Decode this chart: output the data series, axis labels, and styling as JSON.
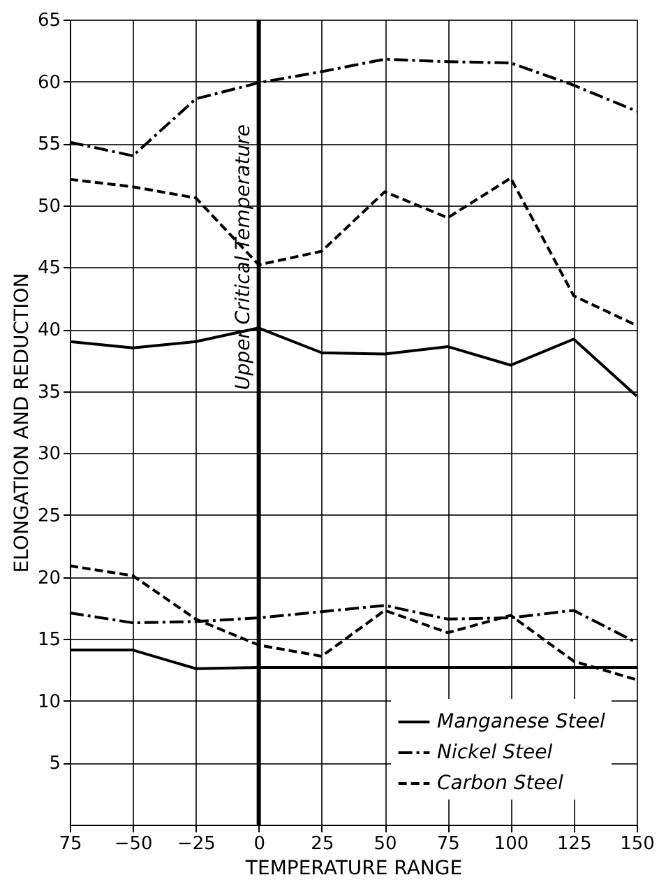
{
  "chart_data": {
    "type": "line",
    "xlabel": "TEMPERATURE RANGE",
    "ylabel": "ELONGATION AND REDUCTION",
    "x": [
      -75,
      -50,
      -25,
      0,
      25,
      50,
      75,
      100,
      125,
      150
    ],
    "xlim": [
      -75,
      150
    ],
    "xticks": [
      {
        "value": -75,
        "label": "75"
      },
      -50,
      -25,
      0,
      25,
      50,
      75,
      100,
      125,
      150
    ],
    "ylim": [
      0,
      65
    ],
    "yticks": [
      5,
      10,
      15,
      20,
      25,
      30,
      35,
      40,
      45,
      50,
      55,
      60,
      65
    ],
    "grid": true,
    "legend": "bottom right",
    "marker": "none",
    "ref_lines": [
      {
        "axis": "x",
        "value": 0,
        "label": "Upper Critical Temperature",
        "color": "#000000"
      }
    ],
    "series": [
      {
        "name": "Manganese Steel",
        "color": "#000000",
        "line_style": "solid",
        "values": [
          39.0,
          38.5,
          39.0,
          40.1,
          38.1,
          38.0,
          38.6,
          37.1,
          39.2,
          34.6
        ]
      },
      {
        "name": "Nickel Steel",
        "color": "#000000",
        "line_style": "dashdot",
        "values": [
          55.1,
          54.0,
          58.6,
          59.9,
          60.8,
          61.8,
          61.6,
          61.5,
          59.7,
          57.6
        ]
      },
      {
        "name": "Carbon Steel",
        "color": "#000000",
        "line_style": "dashed",
        "values": [
          52.1,
          51.5,
          50.6,
          45.2,
          46.3,
          51.1,
          49.0,
          52.2,
          42.7,
          40.3
        ]
      },
      {
        "color": "#000000",
        "line_style": "solid",
        "values": [
          14.1,
          14.1,
          12.6,
          12.7,
          12.7,
          12.7,
          12.7,
          12.7,
          12.7,
          12.7
        ]
      },
      {
        "color": "#000000",
        "line_style": "dashdot",
        "values": [
          17.1,
          16.3,
          16.4,
          16.7,
          17.2,
          17.7,
          16.6,
          16.7,
          17.3,
          14.7
        ]
      },
      {
        "color": "#000000",
        "line_style": "dashed",
        "values": [
          20.9,
          20.1,
          16.6,
          14.5,
          13.6,
          17.3,
          15.5,
          16.9,
          13.2,
          11.7
        ]
      }
    ]
  }
}
